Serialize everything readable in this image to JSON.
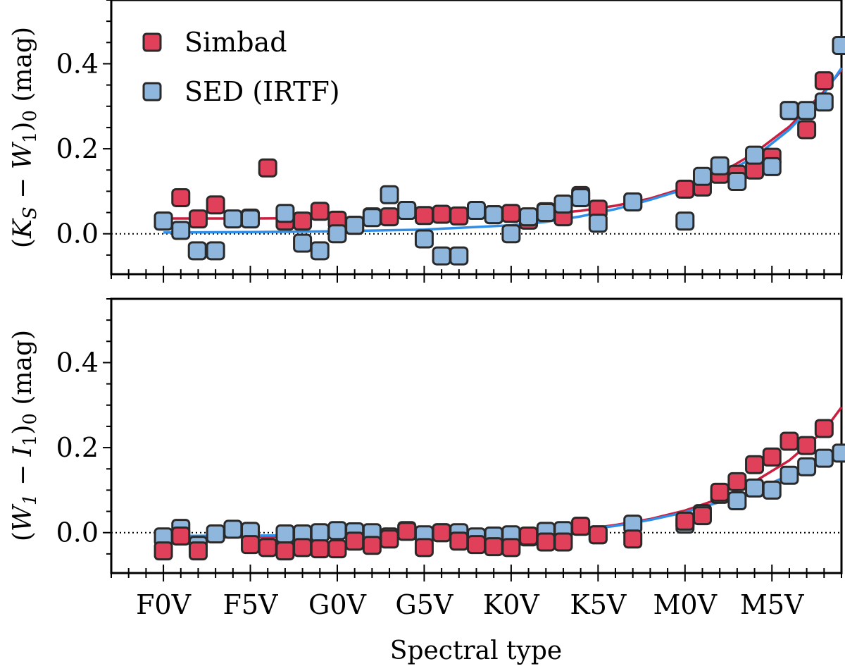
{
  "chart_data": {
    "type": "scatter",
    "xlabel": "Spectral type",
    "x_tick_labels": [
      "F0V",
      "F5V",
      "G0V",
      "G5V",
      "K0V",
      "K5V",
      "M0V",
      "M5V"
    ],
    "x_tick_positions": [
      0,
      5,
      10,
      15,
      20,
      25,
      30,
      35
    ],
    "xlim": [
      -3,
      39
    ],
    "legend": {
      "placement": "top-left",
      "entries": [
        {
          "label": "Simbad",
          "color": "#e0405a"
        },
        {
          "label": "SED (IRTF)",
          "color": "#8fb6dc"
        }
      ]
    },
    "panels": [
      {
        "name": "top",
        "ylabel_parts": [
          "(",
          "K",
          "S",
          " − ",
          "W",
          "1",
          ")",
          "0",
          " (mag)"
        ],
        "ylim": [
          -0.095,
          0.55
        ],
        "y_tick_labels": [
          "0.0",
          "0.2",
          "0.4"
        ],
        "y_ticks": [
          0.0,
          0.2,
          0.4
        ],
        "series": [
          {
            "name": "Simbad",
            "color": "#e0405a",
            "marker": "square",
            "x": [
              0,
              1,
              2,
              3,
              5,
              6,
              7,
              8,
              9,
              10,
              11,
              12,
              13,
              14,
              15,
              16,
              17,
              18,
              19,
              20,
              21,
              22,
              23,
              24,
              25,
              27,
              30,
              31,
              32,
              33,
              34,
              35,
              36,
              37,
              38
            ],
            "y": [
              0.03,
              0.085,
              0.035,
              0.068,
              0.037,
              0.155,
              0.03,
              0.03,
              0.053,
              0.032,
              0.02,
              0.04,
              0.04,
              0.055,
              0.043,
              0.046,
              0.042,
              0.055,
              0.045,
              0.048,
              0.032,
              0.052,
              0.04,
              0.09,
              0.058,
              0.075,
              0.105,
              0.11,
              0.14,
              0.14,
              0.15,
              0.18,
              0.29,
              0.245,
              0.36
            ]
          },
          {
            "name": "SED (IRTF)",
            "color": "#8fb6dc",
            "marker": "square",
            "x": [
              0,
              1,
              1.95,
              3,
              4,
              5,
              7,
              8,
              9,
              10,
              11,
              12,
              13,
              14,
              15,
              16,
              17,
              18,
              19,
              20,
              21,
              22,
              23,
              24,
              25,
              27,
              30,
              31,
              32,
              33,
              34,
              35,
              36,
              37,
              38,
              39
            ],
            "y": [
              0.03,
              0.008,
              -0.04,
              -0.04,
              0.035,
              0.035,
              0.048,
              -0.022,
              -0.04,
              0.0,
              0.02,
              0.038,
              0.092,
              0.055,
              -0.012,
              -0.052,
              -0.052,
              0.055,
              0.045,
              0.0,
              0.04,
              0.05,
              0.07,
              0.085,
              0.025,
              0.075,
              0.03,
              0.135,
              0.16,
              0.123,
              0.185,
              0.158,
              0.29,
              0.29,
              0.31,
              0.443
            ]
          }
        ],
        "fits": [
          {
            "name": "Simbad fit",
            "color": "#cc1f40",
            "x": [
              0,
              5,
              10,
              15,
              20,
              22,
              24,
              26,
              28,
              30,
              32,
              34,
              36,
              38,
              39
            ],
            "y": [
              0.036,
              0.036,
              0.037,
              0.039,
              0.043,
              0.047,
              0.054,
              0.066,
              0.083,
              0.108,
              0.142,
              0.19,
              0.252,
              0.335,
              0.385
            ]
          },
          {
            "name": "SED fit",
            "color": "#2f8fe8",
            "x": [
              0,
              5,
              10,
              15,
              20,
              22,
              24,
              26,
              28,
              30,
              32,
              34,
              36,
              38,
              39
            ],
            "y": [
              0.003,
              0.004,
              0.006,
              0.01,
              0.02,
              0.028,
              0.041,
              0.058,
              0.08,
              0.105,
              0.137,
              0.18,
              0.245,
              0.33,
              0.39
            ]
          }
        ]
      },
      {
        "name": "bottom",
        "ylabel_parts": [
          "(",
          "W",
          "1",
          " − ",
          "I",
          "1",
          ")",
          "0",
          " (mag)"
        ],
        "ylim": [
          -0.095,
          0.55
        ],
        "y_tick_labels": [
          "0.0",
          "0.2",
          "0.4"
        ],
        "y_ticks": [
          0.0,
          0.2,
          0.4
        ],
        "series": [
          {
            "name": "SED (IRTF)",
            "color": "#8fb6dc",
            "marker": "square",
            "x": [
              0,
              1,
              2,
              3,
              4,
              5,
              7,
              8,
              9,
              10,
              11,
              12,
              13,
              14,
              15,
              16,
              17,
              18,
              19,
              20,
              21,
              22,
              23,
              24,
              25,
              27,
              30,
              31,
              32,
              33,
              34,
              35,
              36,
              37,
              38,
              39
            ],
            "y": [
              -0.01,
              0.01,
              -0.03,
              -0.003,
              0.008,
              0.003,
              -0.003,
              -0.003,
              0.0,
              0.005,
              0.002,
              0.0,
              -0.01,
              0.005,
              -0.005,
              0.0,
              0.0,
              -0.01,
              -0.008,
              -0.005,
              -0.01,
              0.003,
              0.005,
              0.015,
              -0.005,
              0.02,
              0.02,
              0.045,
              0.09,
              0.075,
              0.105,
              0.1,
              0.135,
              0.155,
              0.175,
              0.187
            ]
          },
          {
            "name": "Simbad",
            "color": "#e0405a",
            "marker": "square",
            "x": [
              0,
              1,
              2,
              5,
              6,
              7,
              8,
              9,
              10,
              11,
              12,
              13,
              14,
              15,
              16,
              17,
              18,
              19,
              20,
              21,
              22,
              23,
              24,
              25,
              27,
              30,
              31,
              32,
              33,
              34,
              35,
              36,
              37,
              38
            ],
            "y": [
              -0.043,
              -0.008,
              -0.043,
              -0.028,
              -0.035,
              -0.043,
              -0.035,
              -0.038,
              -0.038,
              -0.02,
              -0.03,
              -0.015,
              0.003,
              -0.035,
              0.0,
              -0.02,
              -0.028,
              -0.033,
              -0.035,
              -0.008,
              -0.022,
              -0.022,
              0.015,
              -0.005,
              -0.015,
              0.027,
              0.04,
              0.095,
              0.12,
              0.16,
              0.178,
              0.215,
              0.205,
              0.245
            ]
          }
        ],
        "fits": [
          {
            "name": "Simbad fit",
            "color": "#cc1f40",
            "x": [
              0,
              5,
              10,
              15,
              20,
              22,
              24,
              26,
              28,
              30,
              32,
              34,
              36,
              38,
              39
            ],
            "y": [
              -0.012,
              -0.011,
              -0.01,
              -0.008,
              -0.004,
              0.0,
              0.007,
              0.018,
              0.032,
              0.052,
              0.08,
              0.12,
              0.17,
              0.24,
              0.295
            ]
          },
          {
            "name": "SED fit",
            "color": "#2f8fe8",
            "x": [
              0,
              5,
              10,
              15,
              20,
              22,
              24,
              26,
              28,
              30,
              32,
              34,
              36,
              38,
              39
            ],
            "y": [
              -0.008,
              -0.007,
              -0.006,
              -0.005,
              -0.003,
              0.0,
              0.006,
              0.016,
              0.03,
              0.048,
              0.072,
              0.1,
              0.135,
              0.175,
              0.2
            ]
          }
        ]
      }
    ]
  }
}
